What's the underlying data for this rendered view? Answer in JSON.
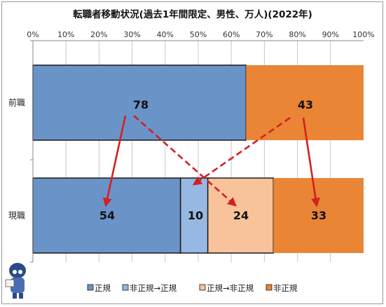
{
  "chart_data": {
    "type": "bar",
    "stacked": true,
    "orientation": "horizontal",
    "percent_stacked": true,
    "title": "転職者移動状況(過去1年間限定、男性、万人)(2022年)",
    "x_ticks": [
      "0%",
      "10%",
      "20%",
      "30%",
      "40%",
      "50%",
      "60%",
      "70%",
      "80%",
      "90%",
      "100%"
    ],
    "xlim": [
      0,
      100
    ],
    "grid": true,
    "legend_position": "bottom",
    "categories": [
      "前職",
      "現職"
    ],
    "bars": [
      {
        "category": "前職",
        "segments": [
          {
            "series": "正規",
            "value": 78,
            "label": "78",
            "color": "#6a94c8"
          },
          {
            "series": "非正規",
            "value": 43,
            "label": "43",
            "color": "#ea8535"
          }
        ]
      },
      {
        "category": "現職",
        "segments": [
          {
            "series": "正規",
            "value": 54,
            "label": "54",
            "color": "#6a94c8"
          },
          {
            "series": "非正規→正規",
            "value": 10,
            "label": "10",
            "color": "#97b8e2"
          },
          {
            "series": "正規→非正規",
            "value": 24,
            "label": "24",
            "color": "#f8c39b"
          },
          {
            "series": "非正規",
            "value": 33,
            "label": "33",
            "color": "#ea8535"
          }
        ]
      }
    ],
    "legend": [
      {
        "label": "正規",
        "color": "#6a94c8"
      },
      {
        "label": "非正規→正規",
        "color": "#97b8e2"
      },
      {
        "label": "正規→非正規",
        "color": "#f8c39b"
      },
      {
        "label": "非正規",
        "color": "#ea8535"
      }
    ],
    "arrows": [
      {
        "from_label": "78",
        "to_label": "54",
        "style": "solid"
      },
      {
        "from_label": "78",
        "to_label": "24",
        "style": "dashed"
      },
      {
        "from_label": "43",
        "to_label": "10",
        "style": "dashed"
      },
      {
        "from_label": "43",
        "to_label": "33",
        "style": "solid"
      }
    ],
    "arrow_color": "#d42020"
  }
}
